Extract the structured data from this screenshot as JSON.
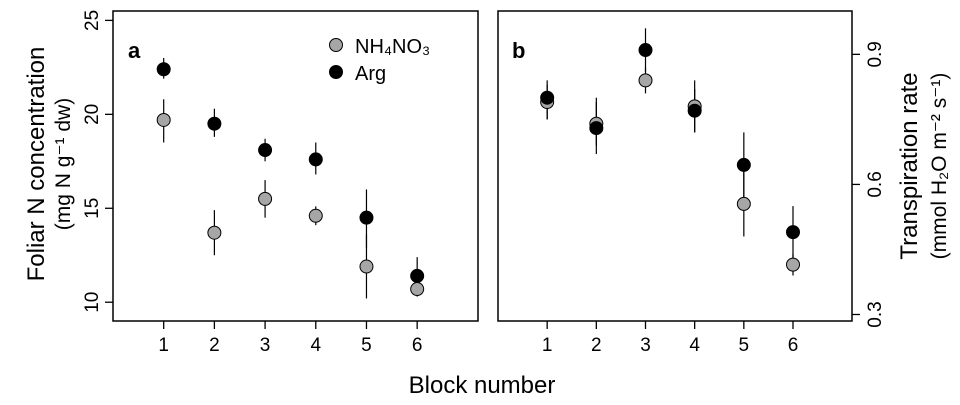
{
  "figure": {
    "xlabel": "Block number"
  },
  "legend": {
    "items": [
      {
        "label": "NH₄NO₃",
        "color": "#a6a6a6"
      },
      {
        "label": "Arg",
        "color": "#000000"
      }
    ]
  },
  "chart_data": [
    {
      "type": "scatter",
      "panel_label": "a",
      "title": "",
      "xlabel": "",
      "ylabel": "Foliar N concentration",
      "ylabel_units": "(mg N g⁻¹ dw)",
      "y_axis_side": "left",
      "x": [
        1,
        2,
        3,
        4,
        5,
        6
      ],
      "xticks": [
        "1",
        "2",
        "3",
        "4",
        "5",
        "6"
      ],
      "xlim": [
        0,
        7.2
      ],
      "yticks": [
        10,
        15,
        20,
        25
      ],
      "ylim": [
        9.0,
        25.5
      ],
      "series": [
        {
          "name": "NH₄NO₃",
          "color": "#a6a6a6",
          "y": [
            19.7,
            13.7,
            15.5,
            14.6,
            11.9,
            10.7
          ],
          "yerr_low": [
            18.5,
            12.5,
            14.5,
            14.1,
            10.2,
            10.3
          ],
          "yerr_high": [
            20.8,
            14.9,
            16.5,
            15.1,
            13.6,
            11.1
          ]
        },
        {
          "name": "Arg",
          "color": "#000000",
          "y": [
            22.4,
            19.5,
            18.1,
            17.6,
            14.5,
            11.4
          ],
          "yerr_low": [
            21.9,
            18.8,
            17.5,
            16.8,
            12.9,
            11.0
          ],
          "yerr_high": [
            23.0,
            20.3,
            18.7,
            18.5,
            16.0,
            12.4
          ]
        }
      ]
    },
    {
      "type": "scatter",
      "panel_label": "b",
      "title": "",
      "xlabel": "",
      "ylabel": "Transpiration rate",
      "ylabel_units": "(mmol H₂O m⁻² s⁻¹)",
      "y_axis_side": "right",
      "x": [
        1,
        2,
        3,
        4,
        5,
        6
      ],
      "xticks": [
        "1",
        "2",
        "3",
        "4",
        "5",
        "6"
      ],
      "xlim": [
        0,
        7.2
      ],
      "yticks": [
        "0.3",
        "0.6",
        "0.9"
      ],
      "ylim": [
        0.285,
        1.0
      ],
      "series": [
        {
          "name": "NH₄NO₃",
          "color": "#a6a6a6",
          "y": [
            0.79,
            0.74,
            0.84,
            0.78,
            0.555,
            0.415
          ],
          "yerr_low": [
            0.75,
            0.69,
            0.81,
            0.72,
            0.48,
            0.39
          ],
          "yerr_high": [
            0.83,
            0.79,
            0.87,
            0.84,
            0.64,
            0.44
          ]
        },
        {
          "name": "Arg",
          "color": "#000000",
          "y": [
            0.8,
            0.73,
            0.91,
            0.77,
            0.645,
            0.49
          ],
          "yerr_low": [
            0.75,
            0.67,
            0.86,
            0.72,
            0.56,
            0.43
          ],
          "yerr_high": [
            0.84,
            0.8,
            0.96,
            0.82,
            0.72,
            0.55
          ]
        }
      ]
    }
  ]
}
